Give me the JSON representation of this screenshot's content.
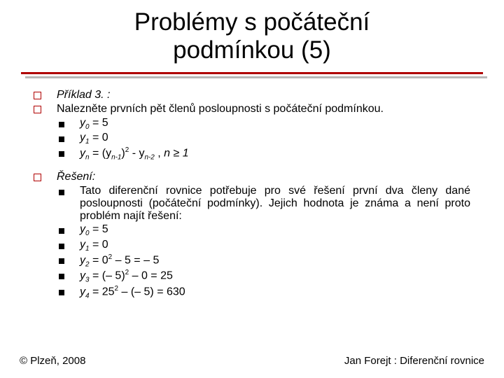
{
  "title_line1": "Problémy s počáteční",
  "title_line2": "podmínkou (5)",
  "sec1": {
    "head": "Příklad 3. :",
    "body": "Nalezněte prvních pět členů posloupnosti s počáteční podmínkou.",
    "items": [
      {
        "pre": "y",
        "sub": "0",
        "post": " = 5"
      },
      {
        "pre": "y",
        "sub": "1",
        "post": " = 0"
      }
    ],
    "formula": {
      "a": "y",
      "asub": "n",
      "eq": " = (y",
      "bsub": "n-1",
      "c": ")",
      "csup": "2",
      "d": " - y",
      "dsub": "n-2",
      "e": " , ",
      "f": "n ≥ 1"
    }
  },
  "sec2": {
    "head": "Řešení:",
    "body": "Tato diferenční rovnice potřebuje pro své řešení první dva členy dané posloupnosti (počáteční podmínky). Jejich hodnota je známa a není proto problém najít řešení:",
    "items": [
      {
        "pre": "y",
        "sub": "0",
        "post": " = 5"
      },
      {
        "pre": "y",
        "sub": "1",
        "post": " = 0"
      },
      {
        "pre": "y",
        "sub": "2",
        "post": " = 0",
        "sup": "2",
        "post2": " – 5 = – 5"
      },
      {
        "pre": "y",
        "sub": "3",
        "post": " = (– 5)",
        "sup": "2",
        "post2": " – 0 = 25"
      },
      {
        "pre": "y",
        "sub": "4",
        "post": " = 25",
        "sup": "2",
        "post2": " – (– 5) = 630"
      }
    ]
  },
  "footer_left": "© Plzeň, 2008",
  "footer_right": "Jan Forejt : Diferenční rovnice",
  "colors": {
    "rule": "#b00000",
    "shadow": "#b8b8b8",
    "text": "#000000",
    "bg": "#ffffff"
  }
}
